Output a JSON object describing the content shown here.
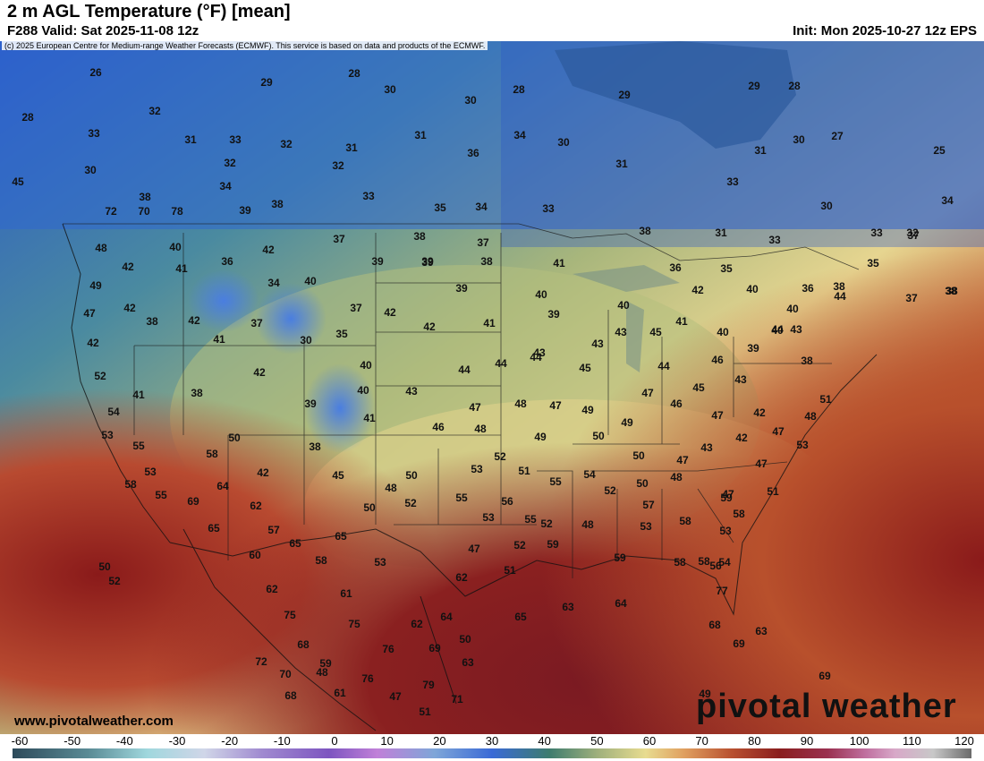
{
  "header": {
    "title": "2 m AGL Temperature (°F) [mean]",
    "valid": "F288 Valid: Sat 2025-11-08 12z",
    "init": "Init: Mon 2025-10-27 12z EPS",
    "copyright": "(c) 2025 European Centre for Medium-range Weather Forecasts (ECMWF). This service is based on data and products of the ECMWF."
  },
  "watermark": "www.pivotalweather.com",
  "logo": "pivotal weather",
  "colorbar": {
    "ticks": [
      "-60",
      "-50",
      "-40",
      "-30",
      "-20",
      "-10",
      "0",
      "10",
      "20",
      "30",
      "40",
      "50",
      "60",
      "70",
      "80",
      "90",
      "100",
      "110",
      "120"
    ]
  },
  "temperature_labels": [
    "26",
    "28",
    "29",
    "30",
    "28",
    "30",
    "29",
    "29",
    "28",
    "27",
    "25",
    "28",
    "33",
    "32",
    "31",
    "33",
    "32",
    "31",
    "31",
    "34",
    "30",
    "31",
    "30",
    "30",
    "32",
    "32",
    "36",
    "31",
    "33",
    "34",
    "33",
    "35",
    "34",
    "33",
    "30",
    "34",
    "45",
    "38",
    "39",
    "38",
    "37",
    "38",
    "37",
    "38",
    "33",
    "31",
    "33",
    "32",
    "37",
    "35",
    "38",
    "48",
    "40",
    "42",
    "41",
    "36",
    "42",
    "34",
    "40",
    "39",
    "39",
    "38",
    "41",
    "36",
    "35",
    "36",
    "38",
    "37",
    "38",
    "49",
    "42",
    "37",
    "42",
    "39",
    "39",
    "40",
    "40",
    "41",
    "39",
    "47",
    "38",
    "42",
    "41",
    "30",
    "35",
    "37",
    "41",
    "42",
    "43",
    "43",
    "43",
    "45",
    "42",
    "43",
    "40",
    "40",
    "44",
    "40",
    "40",
    "42",
    "52",
    "41",
    "38",
    "42",
    "40",
    "44",
    "44",
    "44",
    "45",
    "44",
    "46",
    "39",
    "38",
    "43",
    "44",
    "54",
    "53",
    "39",
    "40",
    "43",
    "47",
    "48",
    "47",
    "49",
    "47",
    "46",
    "45",
    "47",
    "42",
    "47",
    "48",
    "51",
    "55",
    "53",
    "50",
    "38",
    "41",
    "46",
    "48",
    "49",
    "50",
    "49",
    "50",
    "47",
    "43",
    "42",
    "47",
    "53",
    "58",
    "55",
    "58",
    "64",
    "42",
    "45",
    "48",
    "50",
    "53",
    "52",
    "51",
    "54",
    "55",
    "52",
    "50",
    "48",
    "47",
    "51",
    "69",
    "62",
    "50",
    "52",
    "55",
    "56",
    "55",
    "52",
    "48",
    "53",
    "58",
    "57",
    "59",
    "58",
    "53",
    "50",
    "52",
    "57",
    "65",
    "65",
    "58",
    "53",
    "53",
    "47",
    "52",
    "59",
    "59",
    "58",
    "58",
    "56",
    "54",
    "60",
    "61",
    "62",
    "65",
    "51",
    "65",
    "63",
    "64",
    "77",
    "75",
    "75",
    "62",
    "64",
    "50",
    "62",
    "68",
    "69",
    "63",
    "68",
    "72",
    "76",
    "69",
    "63",
    "59",
    "61",
    "69",
    "70",
    "76",
    "79",
    "71",
    "47",
    "51",
    "68",
    "48",
    "49",
    "72",
    "70",
    "78"
  ],
  "colors": {
    "cold_deep": "#2f5fd0",
    "cool": "#5a9a9a",
    "mild": "#a6b67c",
    "warm": "#e6d590",
    "hot": "#c0542e",
    "very_hot": "#8a1a1a"
  }
}
